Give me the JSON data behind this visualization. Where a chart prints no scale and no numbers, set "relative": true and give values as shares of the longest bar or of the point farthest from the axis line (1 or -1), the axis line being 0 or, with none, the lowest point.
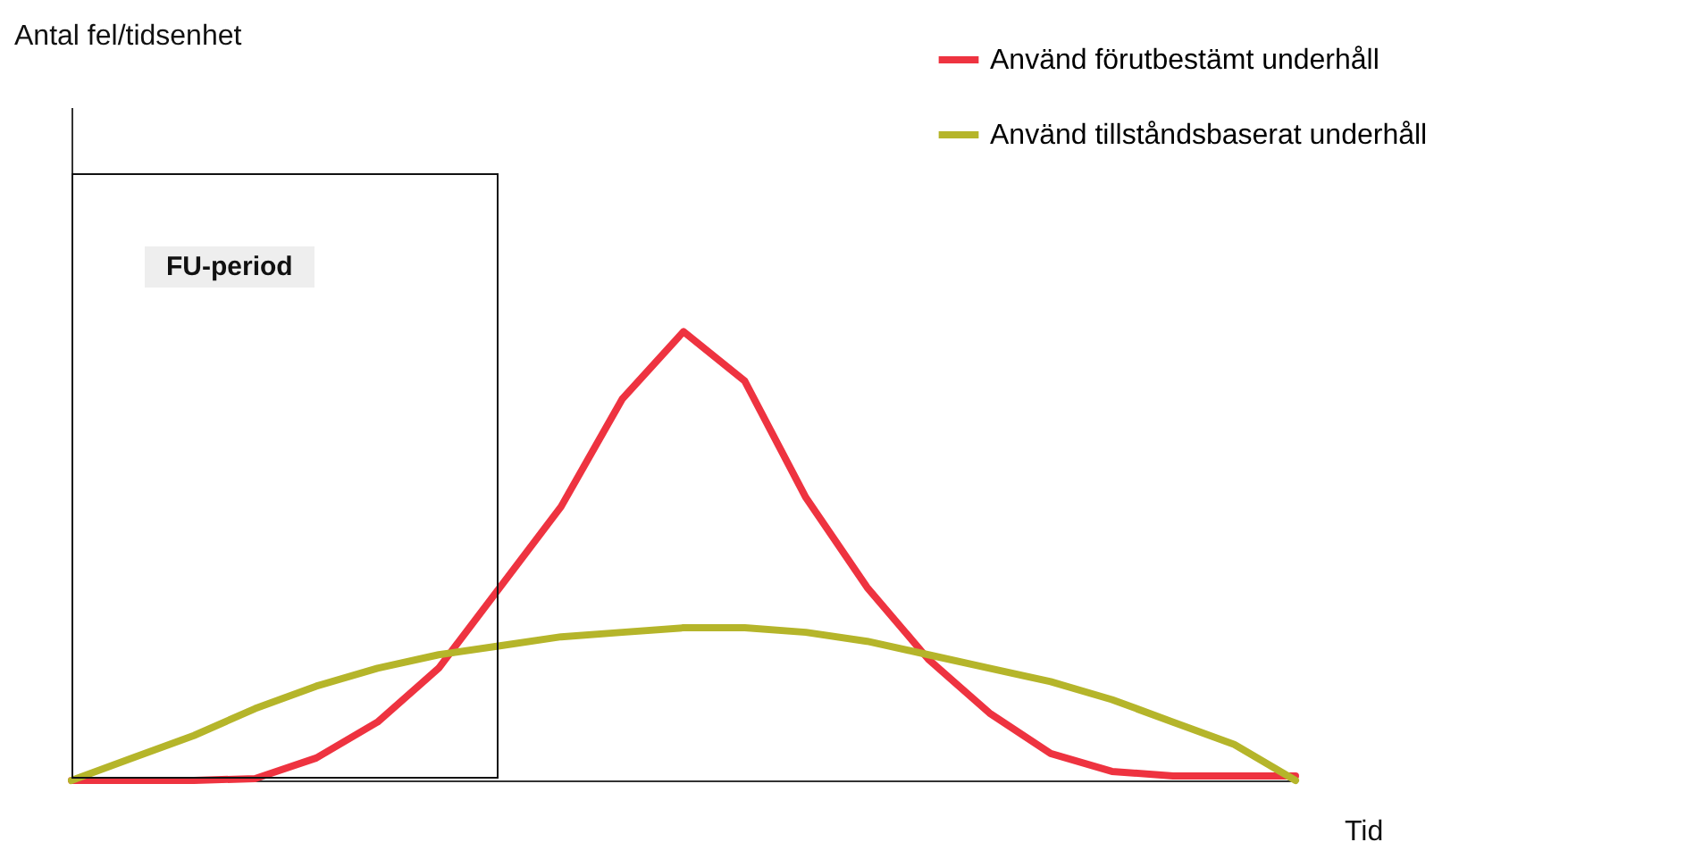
{
  "chart_data": {
    "type": "line",
    "relative": true,
    "xlabel": "Tid",
    "categories": [
      null,
      null,
      null,
      null,
      null,
      null,
      null,
      null,
      null,
      null,
      null,
      null,
      null,
      null,
      null,
      null,
      null,
      null,
      null,
      null,
      null
    ],
    "legend": "top right",
    "series": [
      {
        "name": "Använd  förutbestämt underhåll",
        "color": "#ee3340",
        "values": [
          0,
          0,
          0,
          0.004,
          0.05,
          0.13,
          0.25,
          0.43,
          0.61,
          0.85,
          1,
          0.89,
          0.63,
          0.43,
          0.27,
          0.15,
          0.06,
          0.02,
          0.01,
          0.01,
          0.01
        ]
      },
      {
        "name": "Använd tillståndsbaserat underhåll",
        "color": "#b5b52a",
        "values": [
          0,
          0.05,
          0.1,
          0.16,
          0.21,
          0.25,
          0.28,
          0.3,
          0.32,
          0.33,
          0.34,
          0.34,
          0.33,
          0.31,
          0.28,
          0.25,
          0.22,
          0.18,
          0.13,
          0.08,
          0
        ]
      }
    ],
    "annotations": [
      "Antal fel/tidsenhet",
      "FU-period"
    ]
  }
}
